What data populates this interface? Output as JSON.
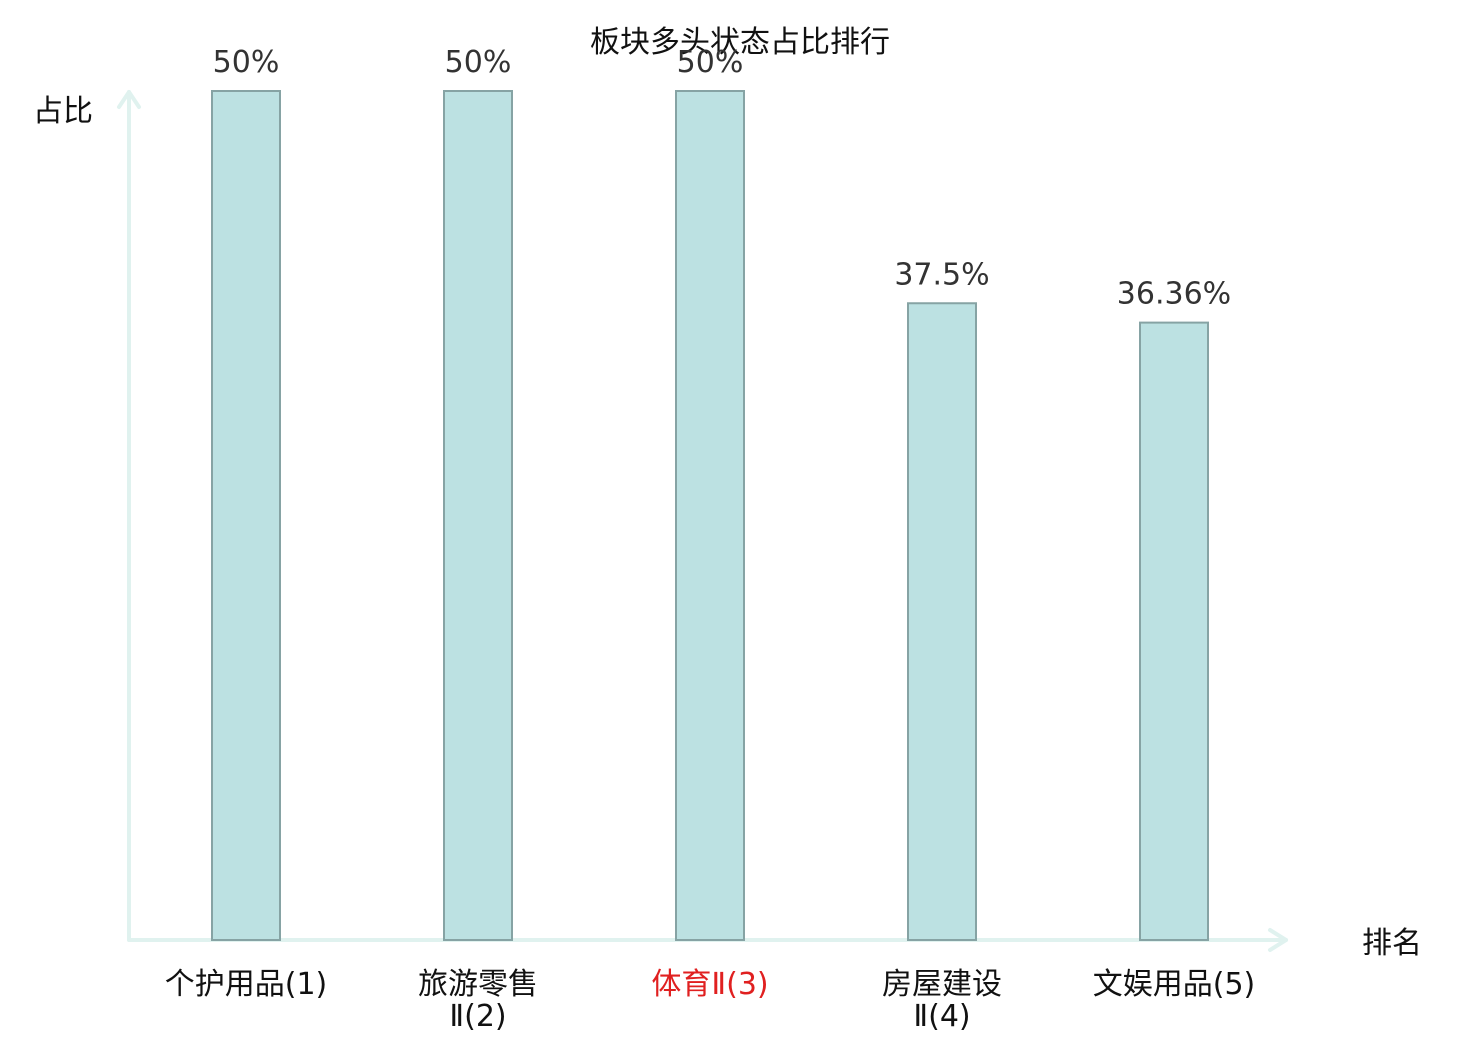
{
  "chart_data": {
    "type": "bar",
    "title": "板块多头状态占比排行",
    "ylabel": "占比",
    "xlabel": "排名",
    "categories": [
      {
        "lines": [
          "个护用品(1)"
        ],
        "highlight": false
      },
      {
        "lines": [
          "旅游零售",
          "Ⅱ(2)"
        ],
        "highlight": false
      },
      {
        "lines": [
          "体育Ⅱ(3)"
        ],
        "highlight": true
      },
      {
        "lines": [
          "房屋建设",
          "Ⅱ(4)"
        ],
        "highlight": false
      },
      {
        "lines": [
          "文娱用品(5)"
        ],
        "highlight": false
      }
    ],
    "values": [
      50,
      50,
      50,
      37.5,
      36.36
    ],
    "value_labels": [
      "50%",
      "50%",
      "50%",
      "37.5%",
      "36.36%"
    ],
    "ylim": [
      0,
      50
    ],
    "grid": false,
    "legend": "none"
  },
  "colors": {
    "bar_fill": "#bce1e2",
    "bar_stroke": "#86a3a4",
    "axis": "#e0f2ef",
    "highlight_text": "#e02020",
    "text": "#111111"
  }
}
